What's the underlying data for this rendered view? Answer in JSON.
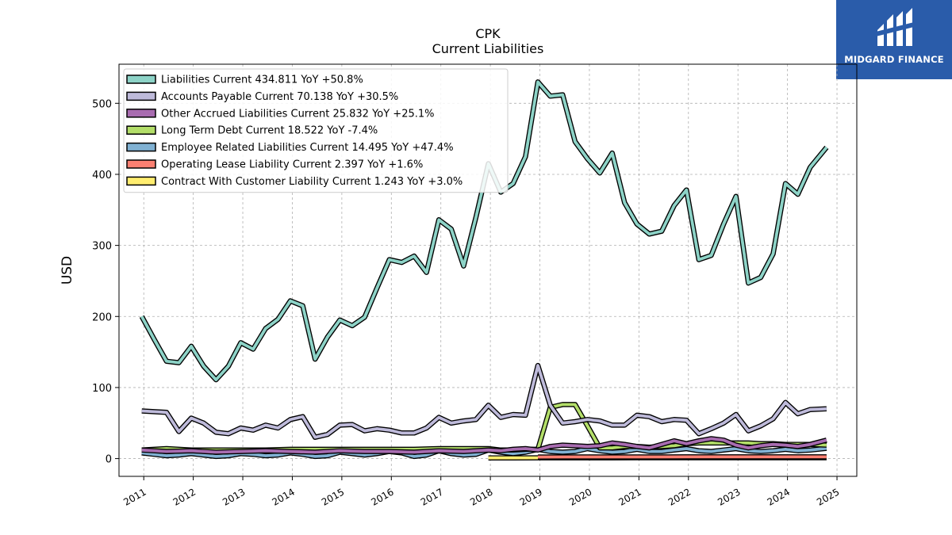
{
  "logo": {
    "text": "MIDGARD FINANCE",
    "color": "#2a5caa"
  },
  "chart_data": {
    "type": "line",
    "title": "CPK",
    "subtitle": "Current  Liabilities",
    "ylabel": "USD",
    "xlim": [
      2010.5,
      2025.4
    ],
    "ylim": [
      -25,
      555
    ],
    "yticks": [
      0,
      100,
      200,
      300,
      400,
      500
    ],
    "xticks": [
      2011,
      2012,
      2013,
      2014,
      2015,
      2016,
      2017,
      2018,
      2019,
      2020,
      2021,
      2022,
      2023,
      2024,
      2025
    ],
    "xtick_labels": [
      "2011",
      "2012",
      "2013",
      "2014",
      "2015",
      "2016",
      "2017",
      "2018",
      "2019",
      "2020",
      "2021",
      "2022",
      "2023",
      "2024",
      "2025"
    ],
    "grid": true,
    "legend_position": "top-left",
    "series": [
      {
        "name": "Liabilities Current  434.811 YoY +50.8%",
        "color": "#8dd3c7",
        "x": [
          2010.96,
          2011.21,
          2011.46,
          2011.71,
          2011.96,
          2012.21,
          2012.46,
          2012.71,
          2012.96,
          2013.21,
          2013.46,
          2013.71,
          2013.96,
          2014.21,
          2014.46,
          2014.71,
          2014.96,
          2015.21,
          2015.46,
          2015.71,
          2015.96,
          2016.21,
          2016.46,
          2016.71,
          2016.96,
          2017.21,
          2017.46,
          2017.71,
          2017.96,
          2018.21,
          2018.46,
          2018.71,
          2018.96,
          2019.21,
          2019.46,
          2019.71,
          2019.96,
          2020.21,
          2020.46,
          2020.71,
          2020.96,
          2021.21,
          2021.46,
          2021.71,
          2021.96,
          2022.21,
          2022.46,
          2022.71,
          2022.96,
          2023.21,
          2023.46,
          2023.71,
          2023.96,
          2024.21,
          2024.46,
          2024.79
        ],
        "y": [
          200,
          168,
          137,
          135,
          158,
          130,
          111,
          130,
          163,
          154,
          183,
          196,
          222,
          215,
          140,
          171,
          195,
          187,
          199,
          240,
          280,
          276,
          285,
          262,
          336,
          323,
          271,
          340,
          415,
          375,
          387,
          425,
          530,
          510,
          512,
          446,
          422,
          402,
          430,
          360,
          330,
          316,
          320,
          356,
          378,
          280,
          286,
          330,
          369,
          247,
          255,
          288,
          387,
          372,
          410,
          438
        ]
      },
      {
        "name": "Accounts Payable Current  70.138 YoY +30.5%",
        "color": "#bebada",
        "x": [
          2010.96,
          2011.21,
          2011.46,
          2011.71,
          2011.96,
          2012.21,
          2012.46,
          2012.71,
          2012.96,
          2013.21,
          2013.46,
          2013.71,
          2013.96,
          2014.21,
          2014.46,
          2014.71,
          2014.96,
          2015.21,
          2015.46,
          2015.71,
          2015.96,
          2016.21,
          2016.46,
          2016.71,
          2016.96,
          2017.21,
          2017.46,
          2017.71,
          2017.96,
          2018.21,
          2018.46,
          2018.71,
          2018.96,
          2019.21,
          2019.46,
          2019.71,
          2019.96,
          2020.21,
          2020.46,
          2020.71,
          2020.96,
          2021.21,
          2021.46,
          2021.71,
          2021.96,
          2022.21,
          2022.46,
          2022.71,
          2022.96,
          2023.21,
          2023.46,
          2023.71,
          2023.96,
          2024.21,
          2024.46,
          2024.79
        ],
        "y": [
          67,
          66,
          65,
          38,
          57,
          50,
          37,
          35,
          43,
          40,
          47,
          43,
          55,
          59,
          30,
          34,
          47,
          48,
          39,
          42,
          40,
          36,
          36,
          43,
          58,
          50,
          53,
          55,
          75,
          58,
          62,
          61,
          131,
          75,
          50,
          52,
          55,
          53,
          47,
          47,
          61,
          59,
          52,
          55,
          54,
          35,
          42,
          50,
          62,
          39,
          46,
          56,
          79,
          63,
          69,
          70
        ]
      },
      {
        "name": "Other Accrued Liabilities Current  25.832 YoY +25.1%",
        "color": "#a86cb0",
        "x": [
          2010.96,
          2011.46,
          2011.96,
          2012.46,
          2012.96,
          2013.46,
          2013.96,
          2014.46,
          2014.96,
          2015.46,
          2015.96,
          2016.46,
          2016.96,
          2017.46,
          2017.96,
          2018.21,
          2018.46,
          2018.71,
          2018.96,
          2019.21,
          2019.46,
          2019.71,
          2019.96,
          2020.21,
          2020.46,
          2020.71,
          2020.96,
          2021.21,
          2021.46,
          2021.71,
          2021.96,
          2022.21,
          2022.46,
          2022.71,
          2022.96,
          2023.21,
          2023.46,
          2023.71,
          2023.96,
          2024.21,
          2024.46,
          2024.79
        ],
        "y": [
          12,
          10,
          11,
          9,
          10,
          11,
          10,
          9,
          11,
          10,
          10,
          9,
          11,
          10,
          12,
          11,
          13,
          14,
          12,
          17,
          19,
          18,
          17,
          18,
          22,
          20,
          17,
          15,
          20,
          25,
          21,
          25,
          28,
          26,
          19,
          15,
          18,
          20,
          19,
          17,
          20,
          26
        ]
      },
      {
        "name": "Long Term Debt Current  18.522 YoY -7.4%",
        "color": "#b3de69",
        "x": [
          2010.96,
          2011.46,
          2011.96,
          2012.46,
          2012.96,
          2013.46,
          2013.96,
          2014.46,
          2014.96,
          2015.46,
          2015.96,
          2016.46,
          2016.96,
          2017.46,
          2017.96,
          2018.21,
          2018.46,
          2018.71,
          2018.96,
          2019.21,
          2019.46,
          2019.71,
          2019.96,
          2020.21,
          2020.46,
          2020.71,
          2020.96,
          2021.21,
          2021.46,
          2021.71,
          2021.96,
          2022.21,
          2022.46,
          2022.71,
          2022.96,
          2023.21,
          2023.46,
          2023.71,
          2023.96,
          2024.21,
          2024.46,
          2024.79
        ],
        "y": [
          12,
          14,
          12,
          12,
          12,
          12,
          13,
          13,
          13,
          13,
          13,
          13,
          14,
          14,
          14,
          12,
          12,
          13,
          13,
          72,
          76,
          76,
          46,
          15,
          15,
          17,
          17,
          16,
          17,
          18,
          21,
          22,
          22,
          22,
          22,
          22,
          21,
          21,
          20,
          20,
          20,
          19
        ]
      },
      {
        "name": "Employee Related Liabilities Current  14.495 YoY +47.4%",
        "color": "#80b1d3",
        "x": [
          2010.96,
          2011.21,
          2011.46,
          2011.71,
          2011.96,
          2012.21,
          2012.46,
          2012.71,
          2012.96,
          2013.21,
          2013.46,
          2013.71,
          2013.96,
          2014.21,
          2014.46,
          2014.71,
          2014.96,
          2015.21,
          2015.46,
          2015.71,
          2015.96,
          2016.21,
          2016.46,
          2016.71,
          2016.96,
          2017.21,
          2017.46,
          2017.71,
          2017.96,
          2018.21,
          2018.46,
          2018.71,
          2018.96,
          2019.21,
          2019.46,
          2019.71,
          2019.96,
          2020.21,
          2020.46,
          2020.71,
          2020.96,
          2021.21,
          2021.46,
          2021.71,
          2021.96,
          2022.21,
          2022.46,
          2022.71,
          2022.96,
          2023.21,
          2023.46,
          2023.71,
          2023.96,
          2024.21,
          2024.46,
          2024.79
        ],
        "y": [
          8,
          6,
          4,
          5,
          7,
          5,
          3,
          4,
          7,
          6,
          4,
          5,
          8,
          6,
          3,
          4,
          9,
          7,
          5,
          7,
          10,
          8,
          3,
          5,
          11,
          7,
          5,
          6,
          12,
          9,
          7,
          9,
          13,
          10,
          9,
          10,
          14,
          11,
          9,
          10,
          13,
          10,
          10,
          12,
          14,
          11,
          10,
          12,
          14,
          11,
          10,
          11,
          13,
          11,
          12,
          14.5
        ]
      },
      {
        "name": "Operating Lease Liability Current  2.397 YoY +1.6%",
        "color": "#fb8072",
        "x": [
          2018.96,
          2019.46,
          2019.96,
          2020.46,
          2020.96,
          2021.46,
          2021.96,
          2022.46,
          2022.96,
          2023.46,
          2023.96,
          2024.46,
          2024.79
        ],
        "y": [
          2.2,
          2.3,
          2.3,
          2.3,
          2.3,
          2.3,
          2.4,
          2.4,
          2.4,
          2.4,
          2.4,
          2.4,
          2.4
        ]
      },
      {
        "name": "Contract With Customer Liability Current  1.243 YoY +3.0%",
        "color": "#ffed6f",
        "x": [
          2017.96,
          2018.46,
          2018.96,
          2019.46,
          2019.96,
          2020.46,
          2020.96,
          2021.46,
          2021.96,
          2022.46,
          2022.96,
          2023.46,
          2023.96,
          2024.46,
          2024.79
        ],
        "y": [
          1.0,
          1.0,
          1.1,
          1.1,
          1.1,
          1.1,
          1.2,
          1.2,
          1.2,
          1.2,
          1.2,
          1.2,
          1.2,
          1.2,
          1.24
        ]
      }
    ]
  }
}
